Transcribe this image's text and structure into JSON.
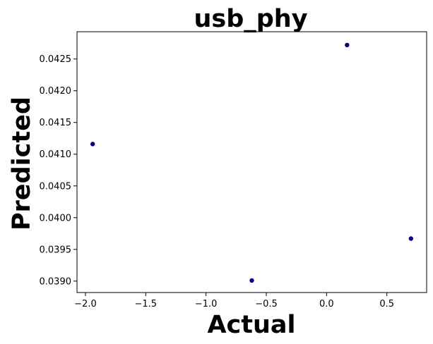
{
  "chart_data": {
    "type": "scatter",
    "title": "usb_phy",
    "xlabel": "Actual",
    "ylabel": "Predicted",
    "xlim": [
      -2.07,
      0.83
    ],
    "ylim": [
      0.03882,
      0.04293
    ],
    "x_ticks": [
      -2.0,
      -1.5,
      -1.0,
      -0.5,
      0.0,
      0.5
    ],
    "x_tick_labels": [
      "−2.0",
      "−1.5",
      "−1.0",
      "−0.5",
      "0.0",
      "0.5"
    ],
    "y_ticks": [
      0.039,
      0.0395,
      0.04,
      0.0405,
      0.041,
      0.0415,
      0.042,
      0.0425
    ],
    "y_tick_labels": [
      "0.0390",
      "0.0395",
      "0.0400",
      "0.0405",
      "0.0410",
      "0.0415",
      "0.0420",
      "0.0425"
    ],
    "grid": false,
    "point_color": "#000080",
    "series": [
      {
        "points": [
          {
            "x": -1.94,
            "y": 0.04116
          },
          {
            "x": -0.62,
            "y": 0.03901
          },
          {
            "x": 0.17,
            "y": 0.04272
          },
          {
            "x": 0.7,
            "y": 0.03967
          }
        ]
      }
    ]
  }
}
